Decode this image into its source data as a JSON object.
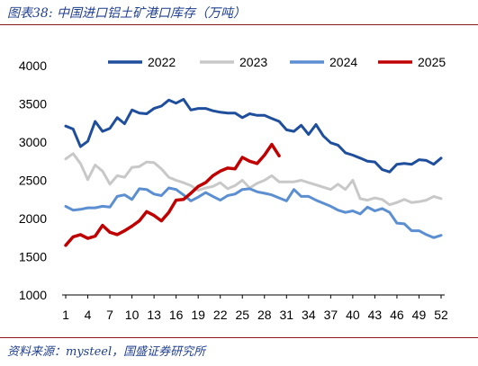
{
  "figure": {
    "title": "图表38:  中国进口铝土矿港口库存（万吨）",
    "source": "资料来源：mysteel，国盛证券研究所"
  },
  "colors": {
    "s2022": "#1f4e9c",
    "s2023": "#c8c8c8",
    "s2024": "#5b8fd1",
    "s2025": "#c00000",
    "title": "#1f3f8f",
    "rule": "#8a1a1a"
  },
  "chart_data": {
    "type": "line",
    "title": "",
    "xlabel": "",
    "ylabel": "",
    "xlim": [
      1,
      52
    ],
    "ylim": [
      1000,
      4000
    ],
    "x_ticks": [
      1,
      4,
      7,
      10,
      13,
      16,
      19,
      22,
      25,
      28,
      31,
      34,
      37,
      40,
      43,
      46,
      49,
      52
    ],
    "y_ticks": [
      1000,
      1500,
      2000,
      2500,
      3000,
      3500,
      4000
    ],
    "grid": false,
    "legend_position": "top",
    "series": [
      {
        "name": "2022",
        "color_key": "s2022",
        "values": [
          3210,
          3170,
          2940,
          3010,
          3270,
          3140,
          3180,
          3320,
          3240,
          3420,
          3380,
          3370,
          3440,
          3470,
          3550,
          3510,
          3560,
          3420,
          3440,
          3440,
          3410,
          3390,
          3380,
          3380,
          3320,
          3370,
          3350,
          3350,
          3310,
          3270,
          3160,
          3140,
          3220,
          3100,
          3230,
          3080,
          2990,
          2960,
          2860,
          2830,
          2790,
          2750,
          2740,
          2640,
          2610,
          2710,
          2720,
          2710,
          2770,
          2760,
          2710,
          2790
        ]
      },
      {
        "name": "2023",
        "color_key": "s2023",
        "values": [
          2780,
          2850,
          2720,
          2510,
          2700,
          2620,
          2450,
          2560,
          2540,
          2670,
          2680,
          2740,
          2730,
          2650,
          2540,
          2500,
          2470,
          2430,
          2370,
          2400,
          2420,
          2470,
          2390,
          2430,
          2500,
          2400,
          2460,
          2500,
          2560,
          2480,
          2480,
          2480,
          2500,
          2470,
          2440,
          2410,
          2380,
          2450,
          2380,
          2500,
          2260,
          2240,
          2270,
          2250,
          2180,
          2210,
          2250,
          2210,
          2220,
          2240,
          2290,
          2260
        ]
      },
      {
        "name": "2024",
        "color_key": "s2024",
        "values": [
          2160,
          2110,
          2120,
          2140,
          2140,
          2160,
          2150,
          2290,
          2310,
          2250,
          2390,
          2380,
          2320,
          2300,
          2400,
          2380,
          2310,
          2230,
          2280,
          2340,
          2290,
          2240,
          2300,
          2320,
          2380,
          2390,
          2350,
          2330,
          2310,
          2270,
          2230,
          2380,
          2290,
          2290,
          2240,
          2200,
          2160,
          2110,
          2080,
          2100,
          2060,
          2150,
          2100,
          2130,
          2080,
          1940,
          1930,
          1840,
          1840,
          1790,
          1750,
          1780
        ]
      },
      {
        "name": "2025",
        "color_key": "s2025",
        "values": [
          1650,
          1760,
          1790,
          1740,
          1770,
          1910,
          1820,
          1790,
          1840,
          1900,
          1970,
          2090,
          2040,
          1970,
          2080,
          2240,
          2250,
          2330,
          2420,
          2470,
          2560,
          2620,
          2660,
          2650,
          2800,
          2750,
          2720,
          2830,
          2970,
          2820
        ]
      }
    ]
  }
}
